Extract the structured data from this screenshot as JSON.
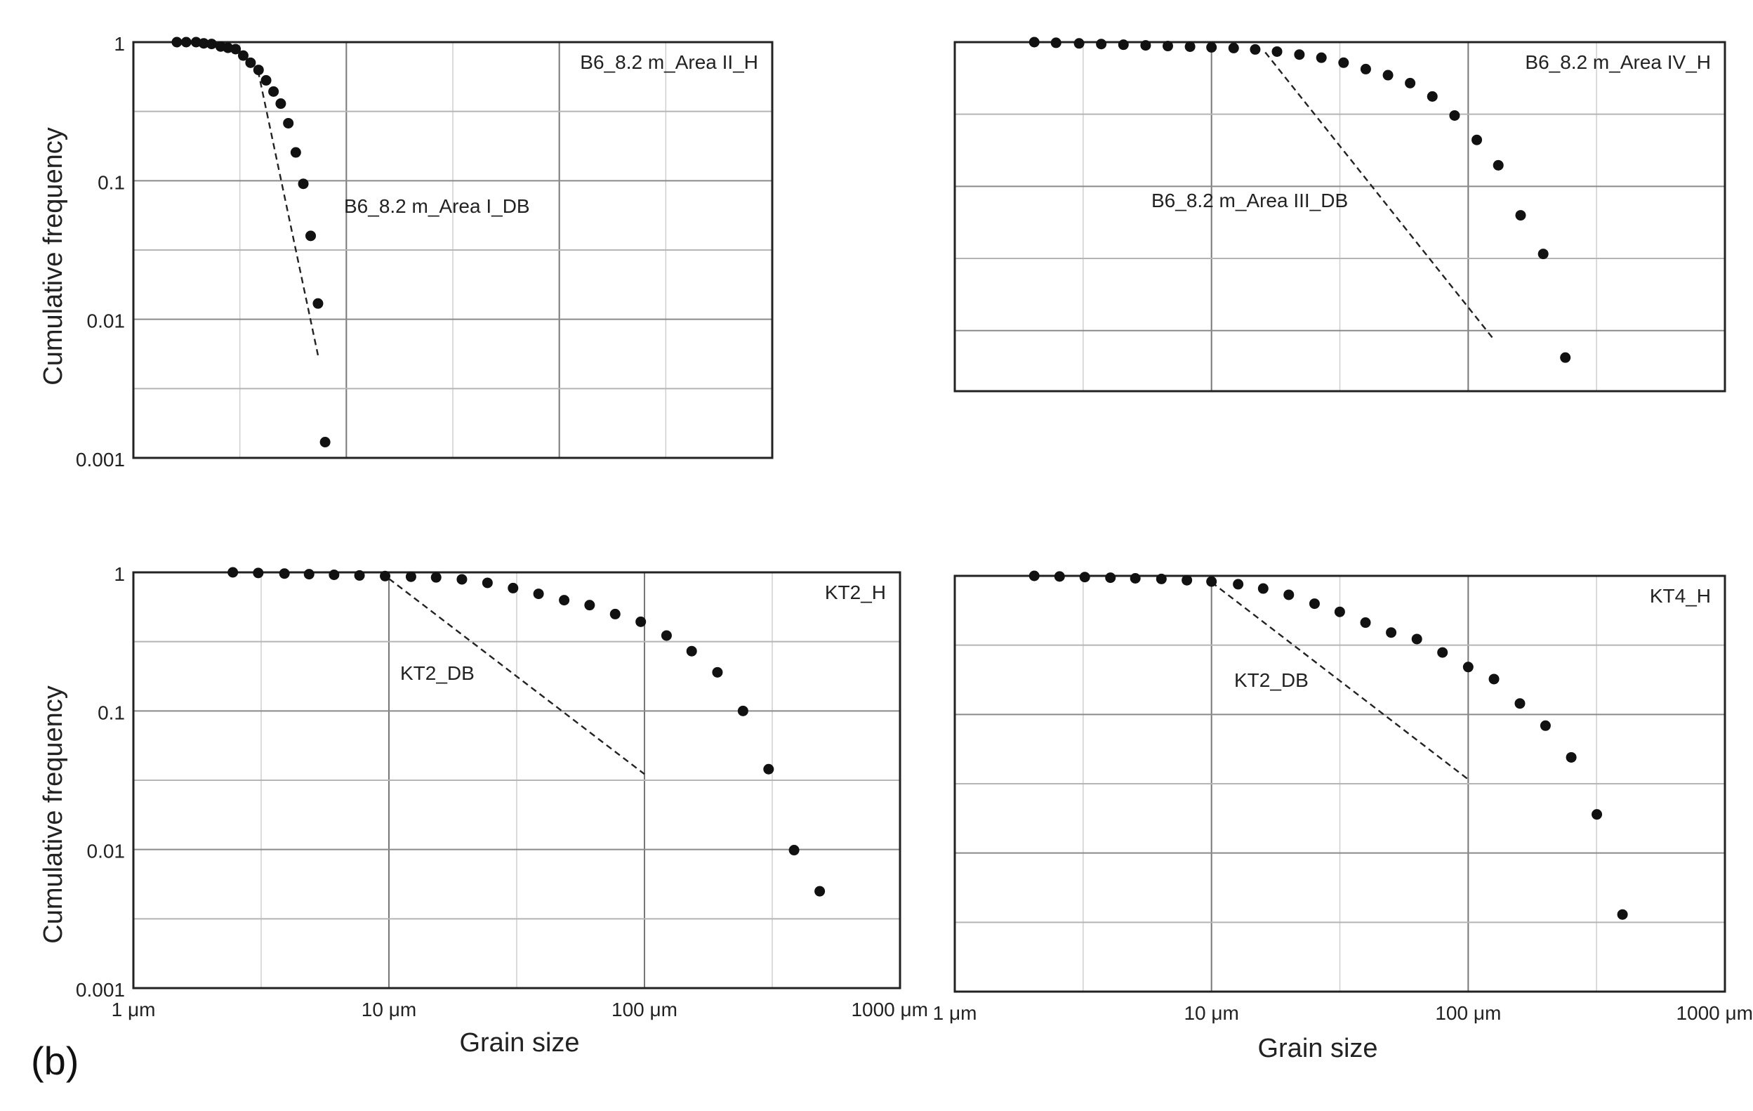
{
  "figure": {
    "panel_label": "(b)",
    "ylabel": "Cumulative frequency",
    "xlabel": "Grain size"
  },
  "chart_data": [
    {
      "type": "scatter",
      "name": "top-left",
      "series_label": "B6_8.2 m_Area II_H",
      "line_label": "B6_8.2 m_Area I_DB",
      "x_scale": "log",
      "y_scale": "log",
      "xlim": [
        1,
        50
      ],
      "ylim": [
        0.001,
        1
      ],
      "yticks": [
        "1",
        "0.1",
        "0.01",
        "0.001"
      ],
      "xticks": [],
      "ylabel": "Cumulative frequency",
      "xlabel": "",
      "points": [
        [
          1.6,
          1
        ],
        [
          1.77,
          1
        ],
        [
          1.97,
          1
        ],
        [
          2.14,
          0.98
        ],
        [
          2.33,
          0.97
        ],
        [
          2.57,
          0.93
        ],
        [
          2.78,
          0.91
        ],
        [
          3.02,
          0.89
        ],
        [
          3.28,
          0.8
        ],
        [
          3.55,
          0.71
        ],
        [
          3.87,
          0.63
        ],
        [
          4.2,
          0.53
        ],
        [
          4.55,
          0.44
        ],
        [
          4.92,
          0.36
        ],
        [
          5.34,
          0.26
        ],
        [
          5.79,
          0.16
        ],
        [
          6.28,
          0.095
        ],
        [
          6.8,
          0.04
        ],
        [
          7.36,
          0.013
        ],
        [
          7.95,
          0.0013
        ]
      ],
      "dashed_line": [
        [
          3.85,
          0.62
        ],
        [
          7.36,
          0.0055
        ]
      ]
    },
    {
      "type": "scatter",
      "name": "top-right",
      "series_label": "B6_8.2 m_Area IV_H",
      "line_label": "B6_8.2 m_Area III_DB",
      "x_scale": "log",
      "y_scale": "log",
      "xlim": [
        1,
        1000
      ],
      "ylim": [
        0.001,
        1
      ],
      "yticks": [],
      "xticks": [],
      "ylabel": "",
      "xlabel": "",
      "points": [
        [
          2.04,
          1
        ],
        [
          2.48,
          0.99
        ],
        [
          3.05,
          0.98
        ],
        [
          3.72,
          0.97
        ],
        [
          4.54,
          0.96
        ],
        [
          5.54,
          0.95
        ],
        [
          6.76,
          0.94
        ],
        [
          8.25,
          0.93
        ],
        [
          10,
          0.92
        ],
        [
          12.2,
          0.91
        ],
        [
          14.8,
          0.89
        ],
        [
          18,
          0.86
        ],
        [
          22,
          0.82
        ],
        [
          26.8,
          0.78
        ],
        [
          32.7,
          0.72
        ],
        [
          39.9,
          0.65
        ],
        [
          48.7,
          0.59
        ],
        [
          59.4,
          0.52
        ],
        [
          72.5,
          0.42
        ],
        [
          88.5,
          0.31
        ],
        [
          108,
          0.21
        ],
        [
          131,
          0.14
        ],
        [
          160,
          0.063
        ],
        [
          196,
          0.034
        ],
        [
          239,
          0.0065
        ]
      ],
      "dashed_line": [
        [
          16.2,
          0.85
        ],
        [
          127,
          0.0085
        ]
      ]
    },
    {
      "type": "scatter",
      "name": "bottom-left",
      "series_label": "KT2_H",
      "line_label": "KT2_DB",
      "x_scale": "log",
      "y_scale": "log",
      "xlim": [
        1,
        1000
      ],
      "ylim": [
        0.001,
        1
      ],
      "yticks": [
        "1",
        "0.1",
        "0.01",
        "0.001"
      ],
      "xticks": [
        "1 μm",
        "10 μm",
        "100 μm",
        "1000 μm"
      ],
      "ylabel": "Cumulative frequency",
      "xlabel": "Grain size",
      "points": [
        [
          2.45,
          1
        ],
        [
          3.08,
          0.99
        ],
        [
          3.9,
          0.98
        ],
        [
          4.87,
          0.97
        ],
        [
          6.1,
          0.96
        ],
        [
          7.67,
          0.95
        ],
        [
          9.66,
          0.94
        ],
        [
          12.2,
          0.93
        ],
        [
          15.3,
          0.92
        ],
        [
          19.3,
          0.89
        ],
        [
          24.3,
          0.84
        ],
        [
          30.6,
          0.77
        ],
        [
          38.5,
          0.7
        ],
        [
          48.5,
          0.63
        ],
        [
          61,
          0.58
        ],
        [
          76.8,
          0.5
        ],
        [
          96.7,
          0.44
        ],
        [
          122,
          0.35
        ],
        [
          153,
          0.27
        ],
        [
          193,
          0.19
        ],
        [
          243,
          0.1
        ],
        [
          306,
          0.038
        ],
        [
          385,
          0.0099
        ],
        [
          485,
          0.005
        ]
      ],
      "dashed_line": [
        [
          10,
          0.9
        ],
        [
          100,
          0.035
        ]
      ]
    },
    {
      "type": "scatter",
      "name": "bottom-right",
      "series_label": "KT4_H",
      "line_label": "KT2_DB",
      "x_scale": "log",
      "y_scale": "log",
      "xlim": [
        1,
        1000
      ],
      "ylim": [
        0.001,
        1
      ],
      "yticks": [],
      "xticks": [
        "1 μm",
        "10 μm",
        "100 μm",
        "1000 μm"
      ],
      "ylabel": "",
      "xlabel": "Grain size",
      "points": [
        [
          2.04,
          1
        ],
        [
          2.56,
          0.99
        ],
        [
          3.21,
          0.98
        ],
        [
          4.04,
          0.97
        ],
        [
          5.05,
          0.96
        ],
        [
          6.38,
          0.95
        ],
        [
          8.02,
          0.93
        ],
        [
          10,
          0.91
        ],
        [
          12.7,
          0.87
        ],
        [
          15.9,
          0.81
        ],
        [
          20,
          0.73
        ],
        [
          25.2,
          0.63
        ],
        [
          31.6,
          0.55
        ],
        [
          39.8,
          0.46
        ],
        [
          50.1,
          0.39
        ],
        [
          63.1,
          0.35
        ],
        [
          79.4,
          0.28
        ],
        [
          100,
          0.22
        ],
        [
          126,
          0.18
        ],
        [
          159,
          0.12
        ],
        [
          200,
          0.083
        ],
        [
          252,
          0.049
        ],
        [
          317,
          0.019
        ],
        [
          399,
          0.0036
        ]
      ],
      "dashed_line": [
        [
          10,
          0.9
        ],
        [
          100,
          0.034
        ]
      ]
    }
  ]
}
